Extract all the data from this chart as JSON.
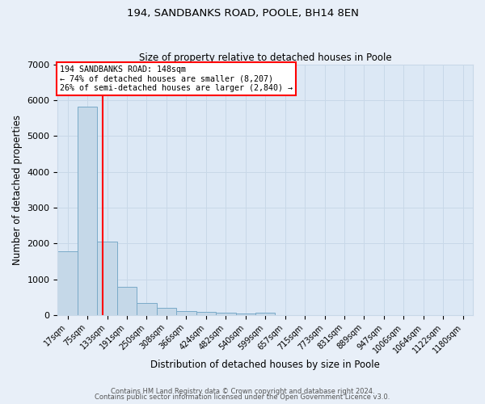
{
  "title1": "194, SANDBANKS ROAD, POOLE, BH14 8EN",
  "title2": "Size of property relative to detached houses in Poole",
  "xlabel": "Distribution of detached houses by size in Poole",
  "ylabel": "Number of detached properties",
  "bar_labels": [
    "17sqm",
    "75sqm",
    "133sqm",
    "191sqm",
    "250sqm",
    "308sqm",
    "366sqm",
    "424sqm",
    "482sqm",
    "540sqm",
    "599sqm",
    "657sqm",
    "715sqm",
    "773sqm",
    "831sqm",
    "889sqm",
    "947sqm",
    "1006sqm",
    "1064sqm",
    "1122sqm",
    "1180sqm"
  ],
  "bar_heights": [
    1780,
    5820,
    2060,
    800,
    340,
    205,
    115,
    80,
    58,
    42,
    72,
    0,
    0,
    0,
    0,
    0,
    0,
    0,
    0,
    0,
    0
  ],
  "bar_color": "#c5d8e8",
  "bar_edge_color": "#7aaac8",
  "bar_edge_width": 0.7,
  "ylim": [
    0,
    7000
  ],
  "yticks": [
    0,
    1000,
    2000,
    3000,
    4000,
    5000,
    6000,
    7000
  ],
  "annotation_line1": "194 SANDBANKS ROAD: 148sqm",
  "annotation_line2": "← 74% of detached houses are smaller (8,207)",
  "annotation_line3": "26% of semi-detached houses are larger (2,840) →",
  "red_line_color": "red",
  "footer1": "Contains HM Land Registry data © Crown copyright and database right 2024.",
  "footer2": "Contains public sector information licensed under the Open Government Licence v3.0.",
  "grid_color": "#c8d8e8",
  "bg_color": "#e8eff8",
  "plot_bg_color": "#dce8f5"
}
